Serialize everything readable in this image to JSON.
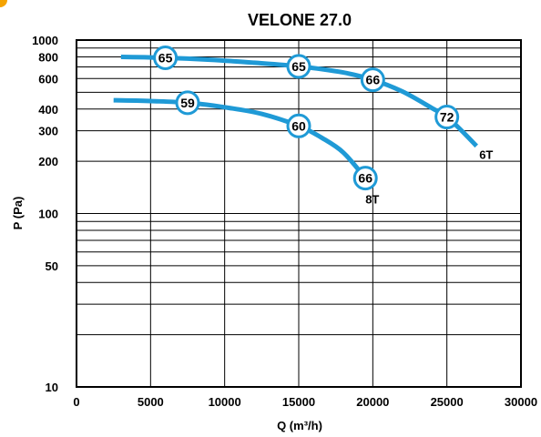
{
  "chart_data": {
    "type": "line",
    "title": "VELONE 27.0",
    "xlabel": "Q (m³/h)",
    "ylabel": "P  (Pa)",
    "xlim": [
      0,
      30000
    ],
    "ylim": [
      10,
      1000
    ],
    "y_scale": "log",
    "grid": true,
    "x_ticks": [
      0,
      5000,
      10000,
      15000,
      20000,
      25000,
      30000
    ],
    "y_tick_labels": [
      10,
      50,
      100,
      200,
      300,
      400,
      600,
      800,
      1000
    ],
    "y_gridlines": [
      10,
      20,
      30,
      40,
      50,
      60,
      70,
      80,
      90,
      100,
      200,
      300,
      400,
      500,
      600,
      700,
      800,
      900,
      1000
    ],
    "color": "#1f9ad6",
    "series": [
      {
        "name": "6T",
        "points": [
          [
            3000,
            800
          ],
          [
            6000,
            790
          ],
          [
            9000,
            770
          ],
          [
            12000,
            740
          ],
          [
            15000,
            705
          ],
          [
            18000,
            650
          ],
          [
            20000,
            590
          ],
          [
            22000,
            505
          ],
          [
            24000,
            405
          ],
          [
            25000,
            360
          ],
          [
            26000,
            300
          ],
          [
            27000,
            245
          ]
        ],
        "labels": [
          {
            "x": 6000,
            "y": 790,
            "text": "65"
          },
          {
            "x": 15000,
            "y": 705,
            "text": "65"
          },
          {
            "x": 20000,
            "y": 590,
            "text": "66"
          },
          {
            "x": 25000,
            "y": 360,
            "text": "72"
          }
        ]
      },
      {
        "name": "8T",
        "points": [
          [
            2500,
            450
          ],
          [
            5000,
            445
          ],
          [
            7500,
            435
          ],
          [
            10000,
            410
          ],
          [
            12500,
            375
          ],
          [
            15000,
            320
          ],
          [
            16500,
            275
          ],
          [
            18000,
            225
          ],
          [
            19500,
            160
          ]
        ],
        "labels": [
          {
            "x": 7500,
            "y": 435,
            "text": "59"
          },
          {
            "x": 15000,
            "y": 320,
            "text": "60"
          },
          {
            "x": 19500,
            "y": 160,
            "text": "66"
          }
        ]
      }
    ]
  }
}
